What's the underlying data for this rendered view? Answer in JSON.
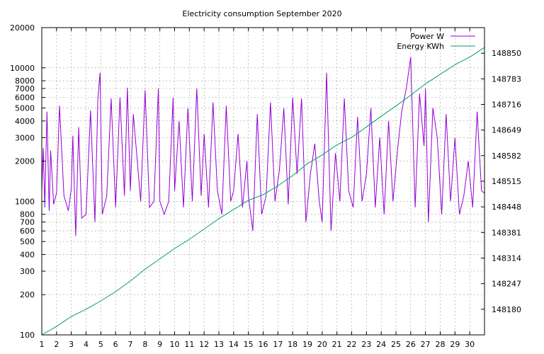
{
  "chart_data": {
    "type": "line",
    "title": "Electricity consumption September 2020",
    "xlabel": "",
    "ylabel": "",
    "y2label": "",
    "x_ticks": [
      "1",
      "2",
      "3",
      "4",
      "5",
      "6",
      "7",
      "8",
      "9",
      "10",
      "11",
      "12",
      "13",
      "14",
      "15",
      "16",
      "17",
      "18",
      "19",
      "20",
      "21",
      "22",
      "23",
      "24",
      "25",
      "26",
      "27",
      "28",
      "29",
      "30"
    ],
    "xlim": [
      1,
      31
    ],
    "y_scale": "log",
    "ylim": [
      100,
      20000
    ],
    "y_ticks": [
      {
        "label": "100",
        "value": 100
      },
      {
        "label": "200",
        "value": 200
      },
      {
        "label": "300",
        "value": 300
      },
      {
        "label": "400",
        "value": 400
      },
      {
        "label": "500",
        "value": 500
      },
      {
        "label": "600",
        "value": 600
      },
      {
        "label": "700",
        "value": 700
      },
      {
        "label": "800",
        "value": 800
      },
      {
        "label": "1000",
        "value": 1000
      },
      {
        "label": "2000",
        "value": 2000
      },
      {
        "label": "3000",
        "value": 3000
      },
      {
        "label": "4000",
        "value": 4000
      },
      {
        "label": "5000",
        "value": 5000
      },
      {
        "label": "6000",
        "value": 6000
      },
      {
        "label": "7000",
        "value": 7000
      },
      {
        "label": "8000",
        "value": 8000
      },
      {
        "label": "10000",
        "value": 10000
      },
      {
        "label": "20000",
        "value": 20000
      }
    ],
    "y2lim": [
      148113,
      148917
    ],
    "y2_ticks": [
      {
        "label": "148180",
        "value": 148180
      },
      {
        "label": "148247",
        "value": 148247
      },
      {
        "label": "148314",
        "value": 148314
      },
      {
        "label": "148381",
        "value": 148381
      },
      {
        "label": "148448",
        "value": 148448
      },
      {
        "label": "148515",
        "value": 148515
      },
      {
        "label": "148582",
        "value": 148582
      },
      {
        "label": "148649",
        "value": 148649
      },
      {
        "label": "148716",
        "value": 148716
      },
      {
        "label": "148783",
        "value": 148783
      },
      {
        "label": "148850",
        "value": 148850
      }
    ],
    "grid": true,
    "legend_position": "top-right",
    "series": [
      {
        "name": "Power W",
        "axis": "y1",
        "color": "#9400d3",
        "x": [
          1.0,
          1.1,
          1.2,
          1.35,
          1.5,
          1.6,
          1.8,
          2.0,
          2.2,
          2.5,
          2.8,
          3.0,
          3.1,
          3.3,
          3.5,
          3.7,
          4.0,
          4.3,
          4.6,
          4.8,
          4.95,
          5.1,
          5.4,
          5.7,
          6.0,
          6.3,
          6.6,
          6.8,
          7.0,
          7.2,
          7.4,
          7.7,
          8.0,
          8.3,
          8.6,
          8.9,
          9.0,
          9.3,
          9.6,
          9.9,
          10.0,
          10.3,
          10.6,
          10.9,
          11.2,
          11.5,
          11.8,
          12.0,
          12.3,
          12.6,
          12.9,
          13.2,
          13.5,
          13.8,
          14.0,
          14.3,
          14.6,
          14.9,
          15.0,
          15.3,
          15.6,
          15.9,
          16.2,
          16.5,
          16.8,
          17.1,
          17.4,
          17.7,
          18.0,
          18.3,
          18.6,
          18.9,
          19.2,
          19.5,
          19.8,
          20.0,
          20.3,
          20.6,
          20.9,
          21.2,
          21.5,
          21.8,
          22.1,
          22.4,
          22.7,
          23.0,
          23.3,
          23.6,
          23.9,
          24.2,
          24.5,
          24.8,
          25.1,
          25.4,
          25.7,
          26.0,
          26.3,
          26.6,
          26.9,
          27.0,
          27.2,
          27.5,
          27.8,
          28.1,
          28.4,
          28.7,
          29.0,
          29.3,
          29.6,
          29.9,
          30.2,
          30.5,
          30.8,
          31.0
        ],
        "y": [
          1200,
          2500,
          900,
          4700,
          850,
          2400,
          950,
          1150,
          5200,
          1100,
          850,
          1250,
          3100,
          550,
          3600,
          750,
          800,
          4800,
          700,
          5900,
          9200,
          800,
          1100,
          5900,
          900,
          6000,
          1100,
          7100,
          1200,
          4500,
          2500,
          1000,
          6800,
          900,
          1000,
          7000,
          1000,
          800,
          1000,
          6000,
          1200,
          4000,
          900,
          5000,
          1000,
          7000,
          1100,
          3200,
          900,
          5500,
          1200,
          800,
          5200,
          1000,
          1200,
          3200,
          900,
          2000,
          1100,
          600,
          4500,
          800,
          1100,
          5500,
          1000,
          1700,
          5000,
          950,
          6000,
          1600,
          5900,
          700,
          1600,
          2700,
          1000,
          700,
          9200,
          600,
          2300,
          1000,
          5900,
          1200,
          900,
          4300,
          1000,
          1600,
          5000,
          900,
          3000,
          800,
          4000,
          1000,
          2400,
          4800,
          7000,
          12000,
          900,
          6400,
          2600,
          7000,
          700,
          5000,
          3000,
          800,
          4500,
          1000,
          3000,
          800,
          1100,
          2000,
          900,
          4700,
          1200,
          1150
        ]
      },
      {
        "name": "Energy KWh",
        "axis": "y2",
        "color": "#009e73",
        "x": [
          1,
          2,
          3,
          4,
          5,
          6,
          7,
          8,
          9,
          10,
          11,
          12,
          13,
          14,
          15,
          16,
          17,
          18,
          19,
          20,
          21,
          22,
          23,
          24,
          25,
          26,
          27,
          28,
          29,
          30,
          31
        ],
        "y": [
          148113,
          148135,
          148161,
          148180,
          148202,
          148226,
          148254,
          148285,
          148312,
          148339,
          148363,
          148390,
          148417,
          148441,
          148465,
          148480,
          148503,
          148530,
          148561,
          148584,
          148610,
          148630,
          148657,
          148685,
          148712,
          148740,
          148770,
          148795,
          148820,
          148840,
          148865
        ]
      }
    ]
  }
}
